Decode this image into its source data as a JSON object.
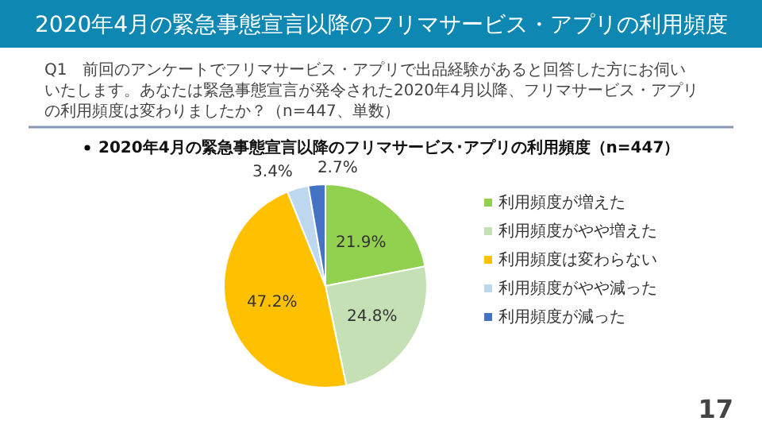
{
  "chart_data": {
    "type": "pie",
    "title": "2020年4月の緊急事態宣言以降のフリマサービス・アプリの利用頻度",
    "subtitle": "2020年4月の緊急事態宣言以降のフリマサービス･アプリの利用頻度（n=447）",
    "annotations": [
      "Q1　前回のアンケートでフリマサービス・アプリで出品経験があると回答した方にお伺いいたします。あなたは緊急事態宣言が発令された2020年4月以降、フリマサービス・アプリの利用頻度は変わりましたか？（n=447、単数）",
      "17"
    ],
    "categories": [
      "利用頻度が増えた",
      "利用頻度がやや増えた",
      "利用頻度は変わらない",
      "利用頻度がやや減った",
      "利用頻度が減った"
    ],
    "values": [
      21.9,
      24.8,
      47.2,
      3.4,
      2.7
    ],
    "colors": [
      "#92d050",
      "#c5e0b4",
      "#ffc000",
      "#bdd7ee",
      "#4472c4"
    ],
    "value_labels": [
      "21.9%",
      "24.8%",
      "47.2%",
      "3.4%",
      "2.7%"
    ],
    "legend": "right"
  }
}
